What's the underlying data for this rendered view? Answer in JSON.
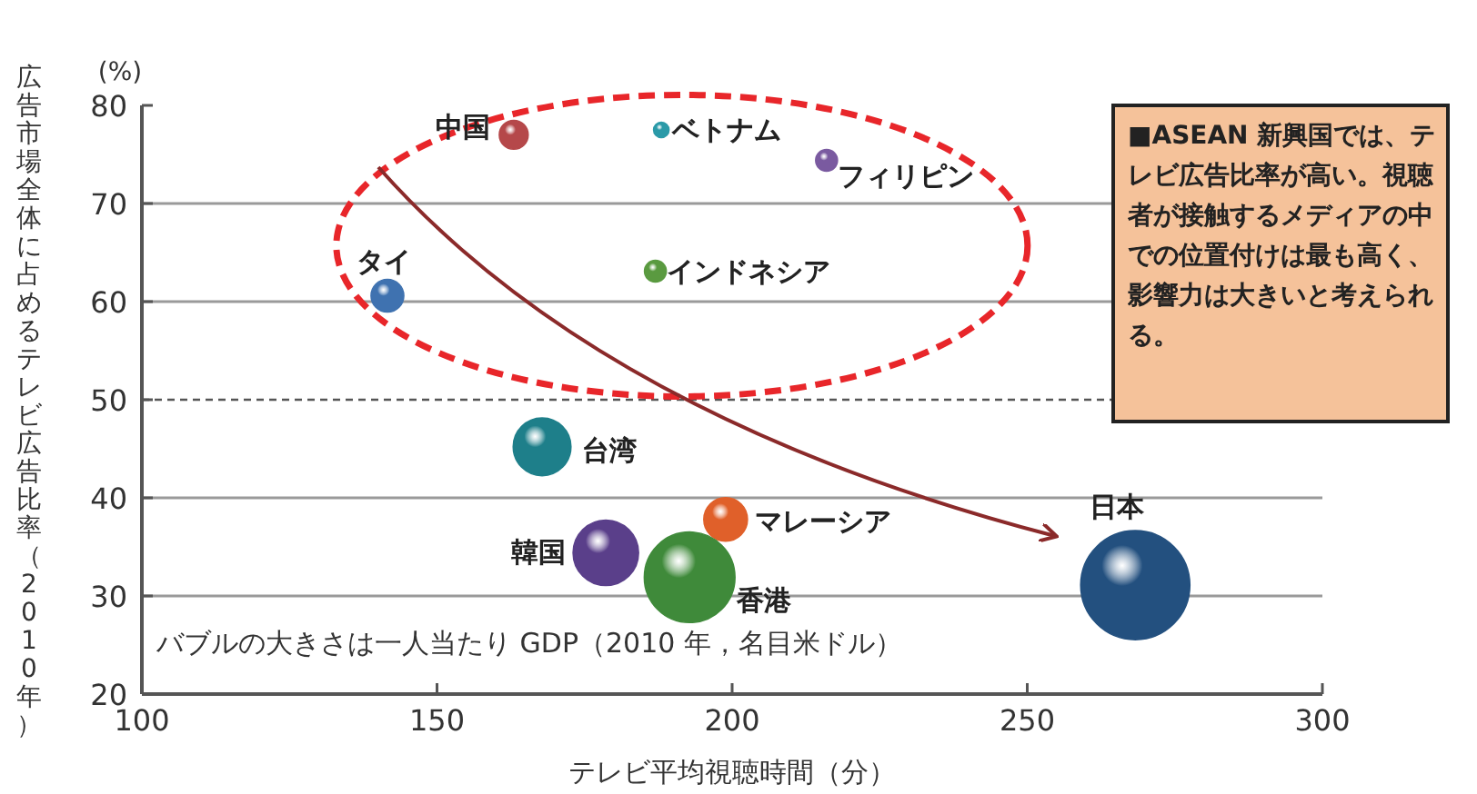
{
  "chart_data": {
    "type": "bubble",
    "xlabel": "テレビ平均視聴時間（分）",
    "ylabel": "広告市場全体に占めるテレビ広告比率（2010年）",
    "x": [
      163,
      188,
      216,
      141.6,
      187,
      167.8,
      198.9,
      178.6,
      192.8,
      268.3
    ],
    "values": [
      77,
      77.5,
      74.4,
      60.6,
      63.1,
      45.2,
      37.8,
      34.4,
      31.9,
      31.1
    ],
    "sizes": [
      0.07,
      0.02,
      0.04,
      0.09,
      0.04,
      0.28,
      0.16,
      0.36,
      0.69,
      1
    ],
    "colors": [
      "#b5484a",
      "#2a9aa8",
      "#7a5aa0",
      "#3f72b0",
      "#5a9a40",
      "#1e7f8a",
      "#e0602a",
      "#5a3f8a",
      "#3f8a3a",
      "#23507f"
    ],
    "xlim": [
      100,
      300
    ],
    "xticks": [
      100,
      150,
      200,
      250,
      300
    ],
    "ylim": [
      20,
      80
    ],
    "yticks": [
      20,
      30,
      40,
      50,
      60,
      70,
      80
    ],
    "grid": "y",
    "ref_lines": [
      {
        "axis": "y",
        "value": 50,
        "line_style": "dashed",
        "color": "#555555"
      }
    ],
    "annotations": [
      {
        "text": "中国",
        "x": 163,
        "y": 77
      },
      {
        "text": "ベトナム",
        "x": 188,
        "y": 77.5
      },
      {
        "text": "フィリピン",
        "x": 216,
        "y": 74.4
      },
      {
        "text": "タイ",
        "x": 141.6,
        "y": 60.6
      },
      {
        "text": "インドネシア",
        "x": 187,
        "y": 63.1
      },
      {
        "text": "台湾",
        "x": 167.8,
        "y": 45.2
      },
      {
        "text": "マレーシア",
        "x": 198.9,
        "y": 37.8
      },
      {
        "text": "韓国",
        "x": 178.6,
        "y": 34.4
      },
      {
        "text": "香港",
        "x": 192.8,
        "y": 31.9
      },
      {
        "text": "日本",
        "x": 268.3,
        "y": 31.1
      },
      "(%)",
      "バブルの大きさは一人当たり GDP（2010 年，名目米ドル）",
      "■ASEAN 新興国では、テレビ広告比率が高い。視聴者が接触するメディアの中での位置付けは最も高く、影響力は大きいと考えられる。"
    ]
  }
}
